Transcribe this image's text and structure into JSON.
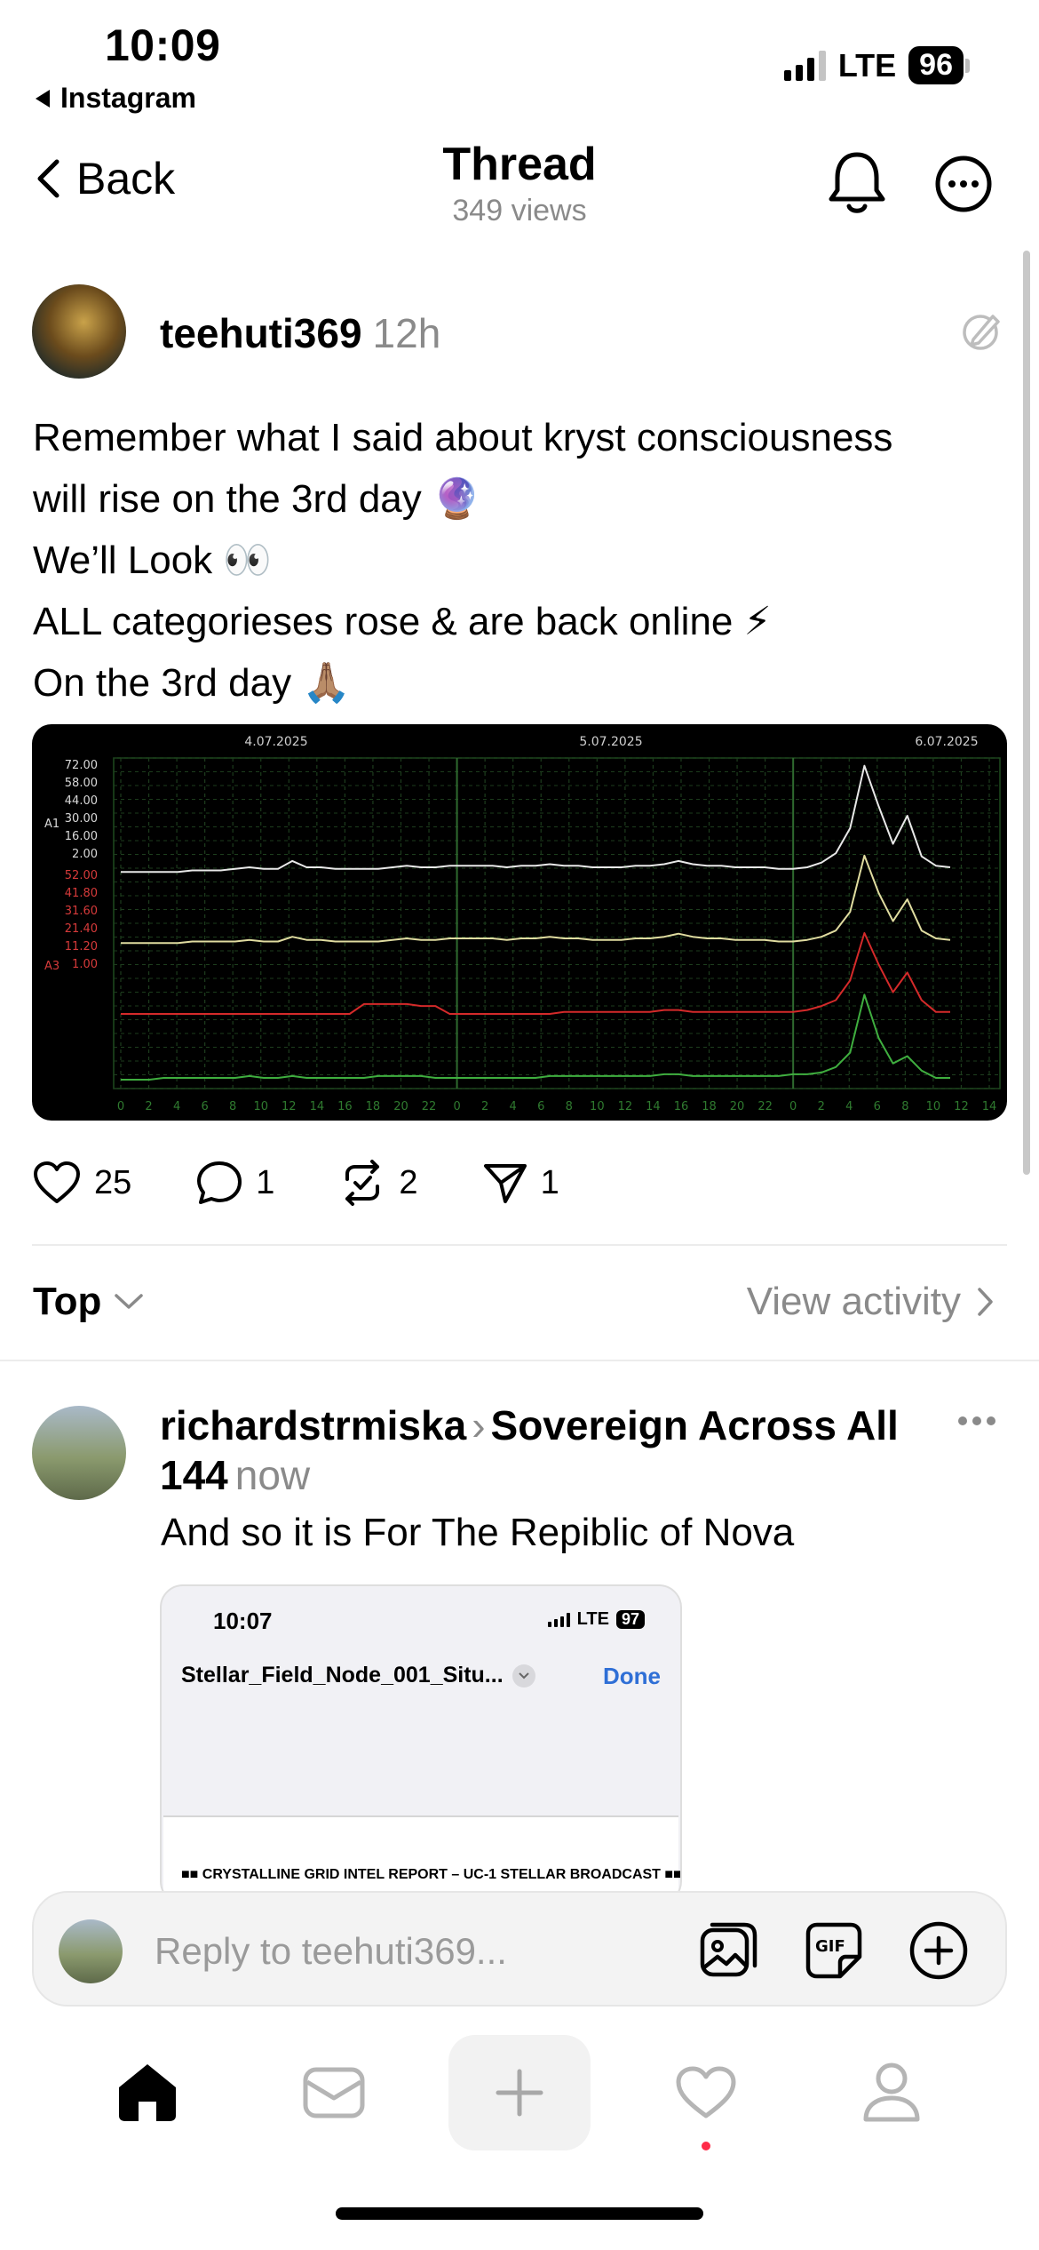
{
  "status_bar": {
    "time": "10:09",
    "back_app": "Instagram",
    "network": "LTE",
    "battery": "96"
  },
  "nav": {
    "back_label": "Back",
    "title": "Thread",
    "views": "349 views"
  },
  "post": {
    "username": "teehuti369",
    "time": "12h",
    "lines": [
      "Remember what I said about kryst consciousness",
      "will rise on the 3rd day 🔮",
      "We’ll Look 👀",
      "ALL categorieses rose & are back online ⚡",
      "On the 3rd day 🙏🏽"
    ],
    "likes": "25",
    "comments": "1",
    "reposts": "2",
    "shares": "1"
  },
  "chart_data": {
    "type": "line",
    "date_labels": [
      "4.07.2025",
      "5.07.2025",
      "6.07.2025"
    ],
    "x_ticks": [
      "0",
      "2",
      "4",
      "6",
      "8",
      "10",
      "12",
      "14",
      "16",
      "18",
      "20",
      "22",
      "0",
      "2",
      "4",
      "6",
      "8",
      "10",
      "12",
      "14",
      "16",
      "18",
      "20",
      "22",
      "0",
      "2",
      "4",
      "6",
      "8",
      "10",
      "12",
      "14"
    ],
    "y_ticks_a1": [
      "72.00",
      "58.00",
      "44.00",
      "30.00",
      "16.00",
      "2.00"
    ],
    "y_ticks_a3": [
      "52.00",
      "41.80",
      "31.60",
      "21.40",
      "11.20",
      "1.00"
    ],
    "axis_a1_label": "A1",
    "axis_a3_label": "A3",
    "series": [
      {
        "color": "#e8e8e8",
        "values": [
          2,
          2,
          2,
          2,
          2,
          3,
          3,
          3,
          4,
          5,
          4,
          4,
          9,
          5,
          5,
          4,
          4,
          4,
          4,
          5,
          6,
          5,
          5,
          6,
          6,
          6,
          6,
          5,
          6,
          6,
          7,
          6,
          6,
          5,
          5,
          5,
          6,
          6,
          7,
          9,
          7,
          6,
          6,
          5,
          5,
          5,
          4,
          4,
          5,
          8,
          14,
          30,
          70,
          44,
          20,
          38,
          12,
          6,
          5
        ]
      },
      {
        "color": "#e0dca0",
        "values": [
          2,
          2,
          2,
          2,
          2,
          3,
          3,
          3,
          3,
          4,
          3,
          3,
          6,
          4,
          4,
          3,
          3,
          3,
          3,
          4,
          5,
          4,
          4,
          5,
          5,
          5,
          5,
          4,
          5,
          5,
          6,
          5,
          5,
          4,
          4,
          4,
          5,
          5,
          6,
          8,
          6,
          5,
          5,
          4,
          4,
          4,
          3,
          3,
          4,
          6,
          10,
          22,
          58,
          34,
          16,
          30,
          10,
          5,
          4
        ]
      },
      {
        "color": "#d42a2a",
        "values": [
          1,
          1,
          1,
          1,
          1,
          1,
          1,
          1,
          1,
          1,
          1,
          1,
          1,
          1,
          1,
          1,
          1,
          6,
          6,
          6,
          6,
          5,
          5,
          1,
          1,
          1,
          1,
          1,
          1,
          1,
          1,
          2,
          2,
          2,
          2,
          2,
          2,
          2,
          3,
          3,
          2,
          2,
          2,
          2,
          2,
          2,
          2,
          2,
          3,
          5,
          8,
          18,
          42,
          26,
          12,
          22,
          8,
          2,
          2
        ]
      },
      {
        "color": "#3fae3f",
        "values": [
          1,
          1,
          1,
          2,
          2,
          2,
          2,
          2,
          2,
          3,
          2,
          2,
          3,
          2,
          2,
          2,
          2,
          2,
          3,
          3,
          3,
          3,
          2,
          2,
          2,
          2,
          2,
          2,
          2,
          2,
          3,
          3,
          3,
          3,
          3,
          3,
          3,
          3,
          4,
          4,
          3,
          3,
          3,
          3,
          3,
          3,
          3,
          4,
          4,
          5,
          8,
          16,
          48,
          24,
          10,
          14,
          6,
          2,
          2
        ]
      }
    ]
  },
  "sort": {
    "label": "Top",
    "view_activity": "View activity"
  },
  "reply": {
    "username": "richardstrmiska",
    "community": "Sovereign Across All 144",
    "time": "now",
    "text": "And so it is For The Repiblic of Nova",
    "screenshot": {
      "time": "10:07",
      "network": "LTE",
      "battery": "97",
      "file_name": "Stellar_Field_Node_001_Situ...",
      "done_label": "Done",
      "report_title": "■■ CRYSTALLINE GRID INTEL REPORT – UC-1 STELLAR BROADCAST ■■"
    }
  },
  "composer": {
    "placeholder": "Reply to teehuti369..."
  },
  "icons": {
    "back": "chevron-left-icon",
    "bell": "bell-icon",
    "more": "more-circle-icon",
    "heart": "heart-icon",
    "comment": "comment-icon",
    "repost": "repost-icon",
    "share": "send-icon",
    "gallery": "gallery-icon",
    "gif": "gif-icon",
    "add": "plus-circle-icon"
  }
}
